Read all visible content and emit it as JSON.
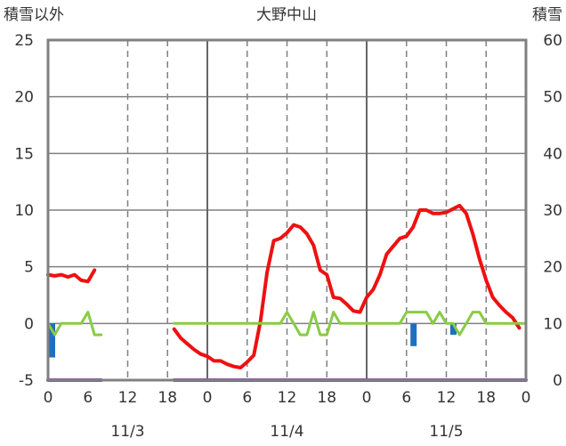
{
  "chart_data": {
    "type": "line",
    "title": "大野中山",
    "left_axis_label": "積雪以外",
    "right_axis_label": "積雪",
    "left_ylim": [
      -5,
      25
    ],
    "left_ticks": [
      "25",
      "20",
      "15",
      "10",
      "5",
      "0",
      "-5"
    ],
    "right_ylim": [
      0,
      60
    ],
    "right_ticks": [
      "60",
      "50",
      "40",
      "30",
      "20",
      "10",
      "0"
    ],
    "x_range_hours": [
      0,
      72
    ],
    "x_tick_labels": [
      "0",
      "12",
      "18",
      "0",
      "6",
      "12",
      "18",
      "0",
      "6",
      "12",
      "18",
      "0"
    ],
    "x_tick_hours": [
      0,
      12,
      18,
      24,
      30,
      36,
      42,
      48,
      54,
      60,
      66,
      72
    ],
    "extra_tick_label": {
      "text": "6",
      "hour": 6
    },
    "date_labels": [
      {
        "text": "11/3",
        "hour": 12
      },
      {
        "text": "11/4",
        "hour": 36
      },
      {
        "text": "11/5",
        "hour": 60
      }
    ],
    "grid": true,
    "colors": {
      "temperature": "#ee1111",
      "green_series": "#88cc44",
      "precip_bars": "#1f6fc0",
      "snow_depth": "#7a3fb0",
      "frame": "#808080",
      "grid": "#808080"
    },
    "series": [
      {
        "axis": "left",
        "segments": [
          [
            [
              0,
              4.3
            ],
            [
              1,
              4.2
            ],
            [
              2,
              4.3
            ],
            [
              3,
              4.1
            ],
            [
              4,
              4.3
            ],
            [
              5,
              3.8
            ],
            [
              6,
              3.7
            ],
            [
              7,
              4.7
            ]
          ],
          [
            [
              19,
              -0.5
            ],
            [
              20,
              -1.3
            ],
            [
              21,
              -1.8
            ],
            [
              22,
              -2.3
            ],
            [
              23,
              -2.7
            ],
            [
              24,
              -2.9
            ],
            [
              25,
              -3.3
            ],
            [
              26,
              -3.3
            ],
            [
              27,
              -3.6
            ],
            [
              28,
              -3.8
            ],
            [
              29,
              -3.9
            ],
            [
              30,
              -3.4
            ],
            [
              31,
              -2.8
            ],
            [
              32,
              0.2
            ],
            [
              33,
              4.5
            ],
            [
              34,
              7.3
            ],
            [
              35,
              7.5
            ],
            [
              36,
              8.0
            ],
            [
              37,
              8.7
            ],
            [
              38,
              8.5
            ],
            [
              39,
              7.9
            ],
            [
              40,
              6.9
            ],
            [
              41,
              4.7
            ],
            [
              42,
              4.3
            ],
            [
              43,
              2.3
            ],
            [
              44,
              2.2
            ],
            [
              45,
              1.7
            ],
            [
              46,
              1.1
            ],
            [
              47,
              1.0
            ],
            [
              48,
              2.3
            ],
            [
              49,
              3.0
            ],
            [
              50,
              4.3
            ],
            [
              51,
              6.1
            ],
            [
              52,
              6.8
            ],
            [
              53,
              7.5
            ],
            [
              54,
              7.7
            ],
            [
              55,
              8.5
            ],
            [
              56,
              10.0
            ],
            [
              57,
              10.0
            ],
            [
              58,
              9.7
            ],
            [
              59,
              9.7
            ],
            [
              60,
              9.8
            ],
            [
              61,
              10.1
            ],
            [
              62,
              10.4
            ],
            [
              63,
              9.7
            ],
            [
              64,
              7.9
            ],
            [
              65,
              5.7
            ],
            [
              66,
              3.8
            ],
            [
              67,
              2.3
            ],
            [
              68,
              1.6
            ],
            [
              69,
              1.0
            ],
            [
              70,
              0.5
            ],
            [
              71,
              -0.4
            ]
          ]
        ]
      },
      {
        "axis": "left",
        "segments": [
          [
            [
              0,
              0
            ],
            [
              1,
              -1
            ],
            [
              2,
              0
            ],
            [
              3,
              0
            ],
            [
              4,
              0
            ],
            [
              5,
              0
            ],
            [
              6,
              1
            ],
            [
              7,
              -1
            ],
            [
              8,
              -1
            ]
          ],
          [
            [
              19,
              0
            ],
            [
              20,
              0
            ],
            [
              21,
              0
            ],
            [
              22,
              0
            ],
            [
              23,
              0
            ],
            [
              24,
              0
            ],
            [
              25,
              0
            ],
            [
              26,
              0
            ],
            [
              27,
              0
            ],
            [
              28,
              0
            ],
            [
              29,
              0
            ],
            [
              30,
              0
            ],
            [
              31,
              0
            ],
            [
              32,
              0
            ],
            [
              33,
              0
            ],
            [
              34,
              0
            ],
            [
              35,
              0
            ],
            [
              36,
              1
            ],
            [
              37,
              0
            ],
            [
              38,
              -1
            ],
            [
              39,
              -1
            ],
            [
              40,
              1
            ],
            [
              41,
              -1
            ],
            [
              42,
              -1
            ],
            [
              43,
              1
            ],
            [
              44,
              0
            ],
            [
              45,
              0
            ],
            [
              46,
              0
            ],
            [
              47,
              0
            ],
            [
              48,
              0
            ],
            [
              49,
              0
            ],
            [
              50,
              0
            ],
            [
              51,
              0
            ],
            [
              52,
              0
            ],
            [
              53,
              0
            ],
            [
              54,
              1
            ],
            [
              55,
              1
            ],
            [
              56,
              1
            ],
            [
              57,
              1
            ],
            [
              58,
              0
            ],
            [
              59,
              1
            ],
            [
              60,
              0
            ],
            [
              61,
              0
            ],
            [
              62,
              -1
            ],
            [
              63,
              0
            ],
            [
              64,
              1
            ],
            [
              65,
              1
            ],
            [
              66,
              0
            ],
            [
              67,
              0
            ],
            [
              68,
              0
            ],
            [
              69,
              0
            ],
            [
              70,
              0
            ],
            [
              71,
              0
            ],
            [
              72,
              0
            ]
          ]
        ]
      },
      {
        "axis": "left",
        "type": "bar",
        "bars": [
          [
            0,
            -3
          ],
          [
            55,
            -2
          ],
          [
            61,
            -1
          ]
        ]
      },
      {
        "axis": "right",
        "segments": [
          [
            [
              0,
              0
            ],
            [
              8,
              0
            ]
          ],
          [
            [
              19,
              0
            ],
            [
              72,
              0
            ]
          ]
        ]
      }
    ]
  }
}
